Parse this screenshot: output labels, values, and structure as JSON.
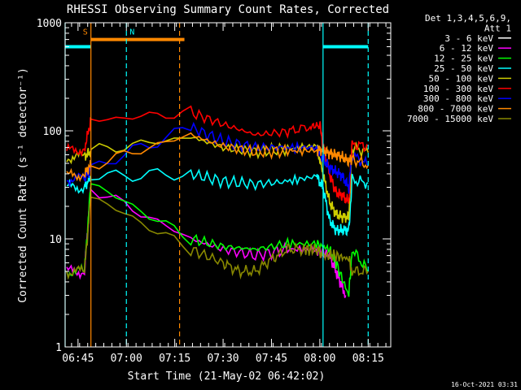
{
  "chart_data": {
    "type": "line",
    "title": "RHESSI Observing Summary Count Rates, Corrected",
    "xlabel": "Start Time (21-May-02 06:42:02)",
    "ylabel": "Corrected Count Rate (s⁻¹ detector⁻¹)",
    "timestamp": "16-Oct-2021 03:31",
    "y_scale": "log",
    "ylim": [
      1,
      1000
    ],
    "xlim_minutes": [
      -4.0,
      97.0
    ],
    "y_ticks": [
      {
        "label": "1",
        "value": 1
      },
      {
        "label": "10",
        "value": 10
      },
      {
        "label": "100",
        "value": 100
      },
      {
        "label": "1000",
        "value": 1000
      }
    ],
    "x_ticks": [
      {
        "label": "06:45",
        "t": 0
      },
      {
        "label": "07:00",
        "t": 15
      },
      {
        "label": "07:15",
        "t": 30
      },
      {
        "label": "07:30",
        "t": 45
      },
      {
        "label": "07:45",
        "t": 60
      },
      {
        "label": "08:00",
        "t": 75
      },
      {
        "label": "08:15",
        "t": 90
      }
    ],
    "legend": {
      "header": [
        "Det 1,3,4,5,6,9,",
        "Att 1"
      ],
      "position": "right",
      "entries": [
        {
          "label": "3 - 6 keV",
          "color": "#ffffff"
        },
        {
          "label": "6 - 12 keV",
          "color": "#ff00ff"
        },
        {
          "label": "12 - 25 keV",
          "color": "#00ff00"
        },
        {
          "label": "25 - 50 keV",
          "color": "#00ffff"
        },
        {
          "label": "50 - 100 keV",
          "color": "#cccc00"
        },
        {
          "label": "100 - 300 keV",
          "color": "#ff0000"
        },
        {
          "label": "300 - 800 keV",
          "color": "#0000ff"
        },
        {
          "label": "800 - 7000 keV",
          "color": "#ff8800"
        },
        {
          "label": "7000 - 15000 keV",
          "color": "#888800"
        }
      ]
    },
    "annotations": {
      "markers": [
        {
          "text": "S",
          "t": 1.5,
          "color": "#ff8800"
        },
        {
          "text": "N",
          "t": 16.0,
          "color": "#00ffff"
        }
      ],
      "bars": [
        {
          "t0": 4.0,
          "t1": 33.0,
          "value": 700,
          "color": "#ff8800"
        },
        {
          "t0": -4.0,
          "t1": 4.0,
          "value": 600,
          "color": "#00ffff"
        },
        {
          "t0": 76.0,
          "t1": 90.0,
          "value": 600,
          "color": "#00ffff"
        }
      ],
      "vlines": [
        {
          "t": -4.0,
          "color": "#00ffff",
          "dash": false
        },
        {
          "t": 4.0,
          "color": "#ff8800",
          "dash": false
        },
        {
          "t": 15.0,
          "color": "#00ffff",
          "dash": true
        },
        {
          "t": 31.5,
          "color": "#ff8800",
          "dash": true
        },
        {
          "t": 76.0,
          "color": "#00ffff",
          "dash": false
        },
        {
          "t": 90.0,
          "color": "#00ffff",
          "dash": true
        }
      ]
    },
    "series": [
      {
        "name": "3 - 6 keV",
        "color": "#ffffff",
        "points": []
      },
      {
        "name": "6 - 12 keV",
        "color": "#ff00ff",
        "points": [
          [
            -3.5,
            5
          ],
          [
            2.0,
            5
          ],
          [
            4.0,
            30
          ],
          [
            35,
            10
          ],
          [
            45,
            8
          ],
          [
            55,
            7
          ],
          [
            65,
            8
          ],
          [
            74,
            8
          ],
          [
            78,
            7
          ],
          [
            80,
            5
          ],
          [
            83,
            3
          ]
        ]
      },
      {
        "name": "12 - 25 keV",
        "color": "#00ff00",
        "points": [
          [
            -3.5,
            5
          ],
          [
            2.0,
            5
          ],
          [
            4.0,
            33
          ],
          [
            35,
            10
          ],
          [
            45,
            8.5
          ],
          [
            55,
            8
          ],
          [
            65,
            9
          ],
          [
            74,
            9
          ],
          [
            78,
            8
          ],
          [
            80,
            6
          ],
          [
            84,
            3
          ],
          [
            85,
            8
          ],
          [
            90,
            5
          ]
        ]
      },
      {
        "name": "25 - 50 keV",
        "color": "#00ffff",
        "points": [
          [
            -3.5,
            30
          ],
          [
            2.0,
            30
          ],
          [
            4.0,
            38
          ],
          [
            35,
            40
          ],
          [
            45,
            34
          ],
          [
            55,
            32
          ],
          [
            65,
            34
          ],
          [
            74,
            38
          ],
          [
            76,
            30
          ],
          [
            78,
            15
          ],
          [
            80,
            12
          ],
          [
            82,
            12
          ],
          [
            84,
            12
          ],
          [
            85,
            35
          ],
          [
            90,
            33
          ]
        ]
      },
      {
        "name": "50 - 100 keV",
        "color": "#cccc00",
        "points": [
          [
            -3.5,
            57
          ],
          [
            2.0,
            58
          ],
          [
            4.0,
            65
          ],
          [
            35,
            88
          ],
          [
            45,
            70
          ],
          [
            55,
            64
          ],
          [
            65,
            68
          ],
          [
            74,
            72
          ],
          [
            76,
            40
          ],
          [
            78,
            22
          ],
          [
            80,
            17
          ],
          [
            82,
            16
          ],
          [
            84,
            16
          ],
          [
            85,
            70
          ],
          [
            90,
            63
          ]
        ]
      },
      {
        "name": "100 - 300 keV",
        "color": "#ff0000",
        "points": [
          [
            -3.5,
            65
          ],
          [
            2.0,
            68
          ],
          [
            4.0,
            125
          ],
          [
            35,
            148
          ],
          [
            45,
            115
          ],
          [
            55,
            92
          ],
          [
            65,
            98
          ],
          [
            72,
            110
          ],
          [
            75,
            112
          ],
          [
            76,
            75
          ],
          [
            78,
            40
          ],
          [
            80,
            27
          ],
          [
            82,
            25
          ],
          [
            84,
            22
          ],
          [
            85,
            75
          ],
          [
            90,
            72
          ]
        ]
      },
      {
        "name": "300 - 800 keV",
        "color": "#0000ff",
        "points": [
          [
            -3.5,
            36
          ],
          [
            2.0,
            36
          ],
          [
            4.0,
            45
          ],
          [
            35,
            108
          ],
          [
            45,
            80
          ],
          [
            55,
            70
          ],
          [
            65,
            70
          ],
          [
            74,
            70
          ],
          [
            76,
            55
          ],
          [
            78,
            45
          ],
          [
            80,
            42
          ],
          [
            82,
            38
          ],
          [
            84,
            30
          ],
          [
            85,
            60
          ],
          [
            90,
            48
          ]
        ]
      },
      {
        "name": "800 - 7000 keV",
        "color": "#ff8800",
        "points": [
          [
            -3.5,
            38
          ],
          [
            2.0,
            40
          ],
          [
            4.0,
            48
          ],
          [
            35,
            92
          ],
          [
            45,
            72
          ],
          [
            55,
            64
          ],
          [
            65,
            65
          ],
          [
            74,
            66
          ],
          [
            76,
            67
          ],
          [
            78,
            62
          ],
          [
            80,
            60
          ],
          [
            82,
            57
          ],
          [
            84,
            52
          ],
          [
            85,
            55
          ],
          [
            90,
            48
          ]
        ]
      },
      {
        "name": "7000 - 15000 keV",
        "color": "#888800",
        "points": [
          [
            -3.5,
            5
          ],
          [
            2.0,
            5
          ],
          [
            4.0,
            25
          ],
          [
            35,
            8
          ],
          [
            45,
            6
          ],
          [
            50,
            5
          ],
          [
            55,
            5
          ],
          [
            60,
            6.5
          ],
          [
            65,
            8
          ],
          [
            70,
            8
          ],
          [
            74,
            8
          ],
          [
            76,
            7
          ],
          [
            80,
            7
          ],
          [
            84,
            6.5
          ],
          [
            85,
            5
          ],
          [
            90,
            5
          ]
        ]
      }
    ]
  }
}
